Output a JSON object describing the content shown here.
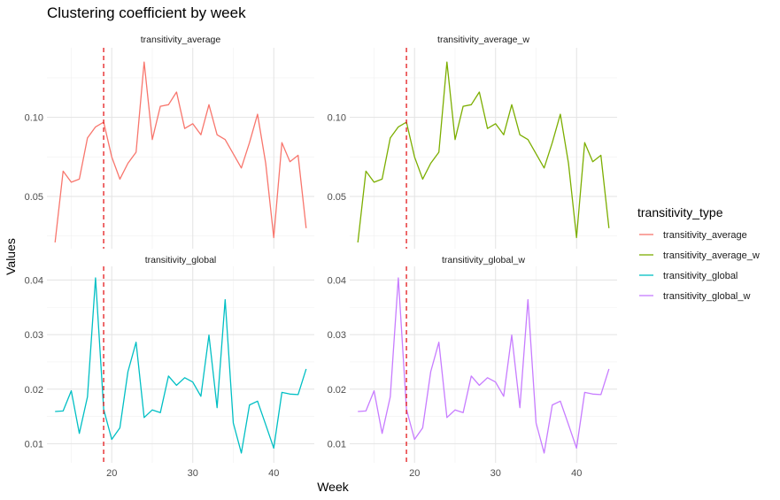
{
  "chart_data": {
    "type": "line",
    "title": "Clustering coefficient by week",
    "xlabel": "Week",
    "ylabel": "Values",
    "legend_title": "transitivity_type",
    "legend_position": "right",
    "grid": true,
    "vline": {
      "x": 19,
      "color": "#E41A1C",
      "style": "dashed"
    },
    "x": [
      13,
      14,
      15,
      16,
      17,
      18,
      19,
      20,
      21,
      22,
      23,
      24,
      25,
      26,
      27,
      28,
      29,
      30,
      31,
      32,
      33,
      34,
      35,
      36,
      37,
      38,
      39,
      40,
      41,
      42,
      43,
      44
    ],
    "xlim": [
      12,
      45
    ],
    "xticks": [
      20,
      30,
      40
    ],
    "facets": [
      {
        "name": "transitivity_average",
        "color": "#F8766D",
        "row": 0,
        "col": 0,
        "ylim": [
          0.017,
          0.144
        ],
        "yticks": [
          0.05,
          0.1
        ],
        "ytick_labels": [
          "0.05",
          "0.10"
        ],
        "values": [
          0.021,
          0.066,
          0.059,
          0.061,
          0.087,
          0.094,
          0.097,
          0.075,
          0.061,
          0.071,
          0.078,
          0.135,
          0.086,
          0.107,
          0.108,
          0.116,
          0.093,
          0.096,
          0.089,
          0.108,
          0.089,
          0.086,
          0.077,
          0.068,
          0.084,
          0.102,
          0.071,
          0.024,
          0.084,
          0.072,
          0.076,
          0.03
        ]
      },
      {
        "name": "transitivity_average_w",
        "color": "#7CAE00",
        "row": 0,
        "col": 1,
        "ylim": [
          0.017,
          0.144
        ],
        "yticks": [
          0.05,
          0.1
        ],
        "ytick_labels": [
          "0.05",
          "0.10"
        ],
        "values": [
          0.021,
          0.066,
          0.059,
          0.061,
          0.087,
          0.094,
          0.097,
          0.075,
          0.061,
          0.071,
          0.078,
          0.135,
          0.086,
          0.107,
          0.108,
          0.116,
          0.093,
          0.096,
          0.089,
          0.108,
          0.089,
          0.086,
          0.077,
          0.068,
          0.084,
          0.102,
          0.071,
          0.024,
          0.084,
          0.072,
          0.076,
          0.03
        ]
      },
      {
        "name": "transitivity_global",
        "color": "#00BFC4",
        "row": 1,
        "col": 0,
        "ylim": [
          0.0065,
          0.0425
        ],
        "yticks": [
          0.01,
          0.02,
          0.03,
          0.04
        ],
        "ytick_labels": [
          "0.01",
          "0.02",
          "0.03",
          "0.04"
        ],
        "values": [
          0.0159,
          0.016,
          0.0197,
          0.0119,
          0.0186,
          0.0404,
          0.0163,
          0.0108,
          0.0129,
          0.0232,
          0.0286,
          0.0148,
          0.0162,
          0.0157,
          0.0224,
          0.0207,
          0.0221,
          0.0213,
          0.0187,
          0.0299,
          0.0166,
          0.0364,
          0.0138,
          0.0083,
          0.0171,
          0.0178,
          0.0135,
          0.0092,
          0.0194,
          0.0191,
          0.019,
          0.0237
        ]
      },
      {
        "name": "transitivity_global_w",
        "color": "#C77CFF",
        "row": 1,
        "col": 1,
        "ylim": [
          0.0065,
          0.0425
        ],
        "yticks": [
          0.01,
          0.02,
          0.03,
          0.04
        ],
        "ytick_labels": [
          "0.01",
          "0.02",
          "0.03",
          "0.04"
        ],
        "values": [
          0.0159,
          0.016,
          0.0197,
          0.0119,
          0.0186,
          0.0404,
          0.0163,
          0.0108,
          0.0129,
          0.0232,
          0.0286,
          0.0148,
          0.0162,
          0.0157,
          0.0224,
          0.0207,
          0.0221,
          0.0213,
          0.0187,
          0.0299,
          0.0166,
          0.0364,
          0.0138,
          0.0083,
          0.0171,
          0.0178,
          0.0135,
          0.0092,
          0.0194,
          0.0191,
          0.019,
          0.0237
        ]
      }
    ]
  }
}
